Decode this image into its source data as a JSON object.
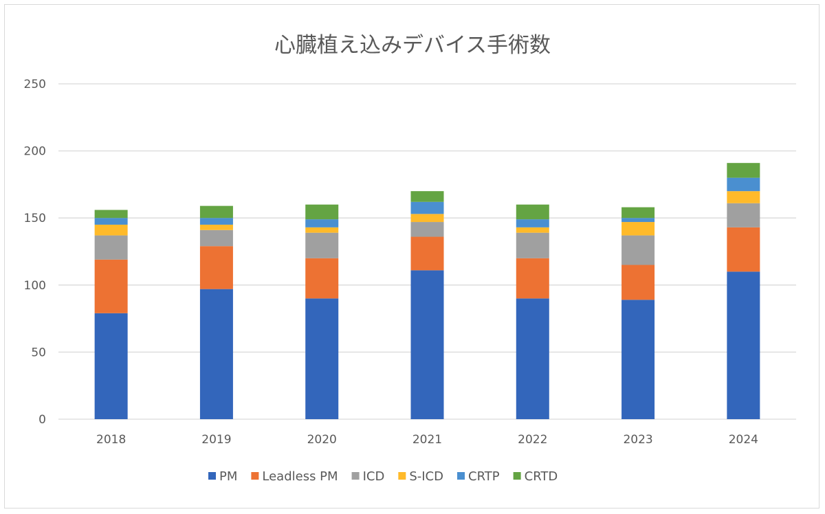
{
  "chart_data": {
    "type": "bar",
    "stacked": true,
    "title": "心臓植え込みデバイス手術数",
    "xlabel": "",
    "ylabel": "",
    "categories": [
      "2018",
      "2019",
      "2020",
      "2021",
      "2022",
      "2023",
      "2024"
    ],
    "ylim": [
      0,
      250
    ],
    "yticks": [
      0,
      50,
      100,
      150,
      200,
      250
    ],
    "grid": true,
    "legend_position": "bottom",
    "series": [
      {
        "name": "PM",
        "color": "#3366bb",
        "values": [
          79,
          97,
          90,
          111,
          90,
          89,
          110
        ]
      },
      {
        "name": "Leadless PM",
        "color": "#ed7233",
        "values": [
          40,
          32,
          30,
          25,
          30,
          26,
          33
        ]
      },
      {
        "name": "ICD",
        "color": "#a0a0a0",
        "values": [
          18,
          12,
          19,
          11,
          19,
          22,
          18
        ]
      },
      {
        "name": "S-ICD",
        "color": "#ffba2a",
        "values": [
          8,
          4,
          4,
          6,
          4,
          10,
          9
        ]
      },
      {
        "name": "CRTP",
        "color": "#4a8fd0",
        "values": [
          5,
          5,
          6,
          9,
          6,
          3,
          10
        ]
      },
      {
        "name": "CRTD",
        "color": "#64a443",
        "values": [
          6,
          9,
          11,
          8,
          11,
          8,
          11
        ]
      }
    ]
  }
}
